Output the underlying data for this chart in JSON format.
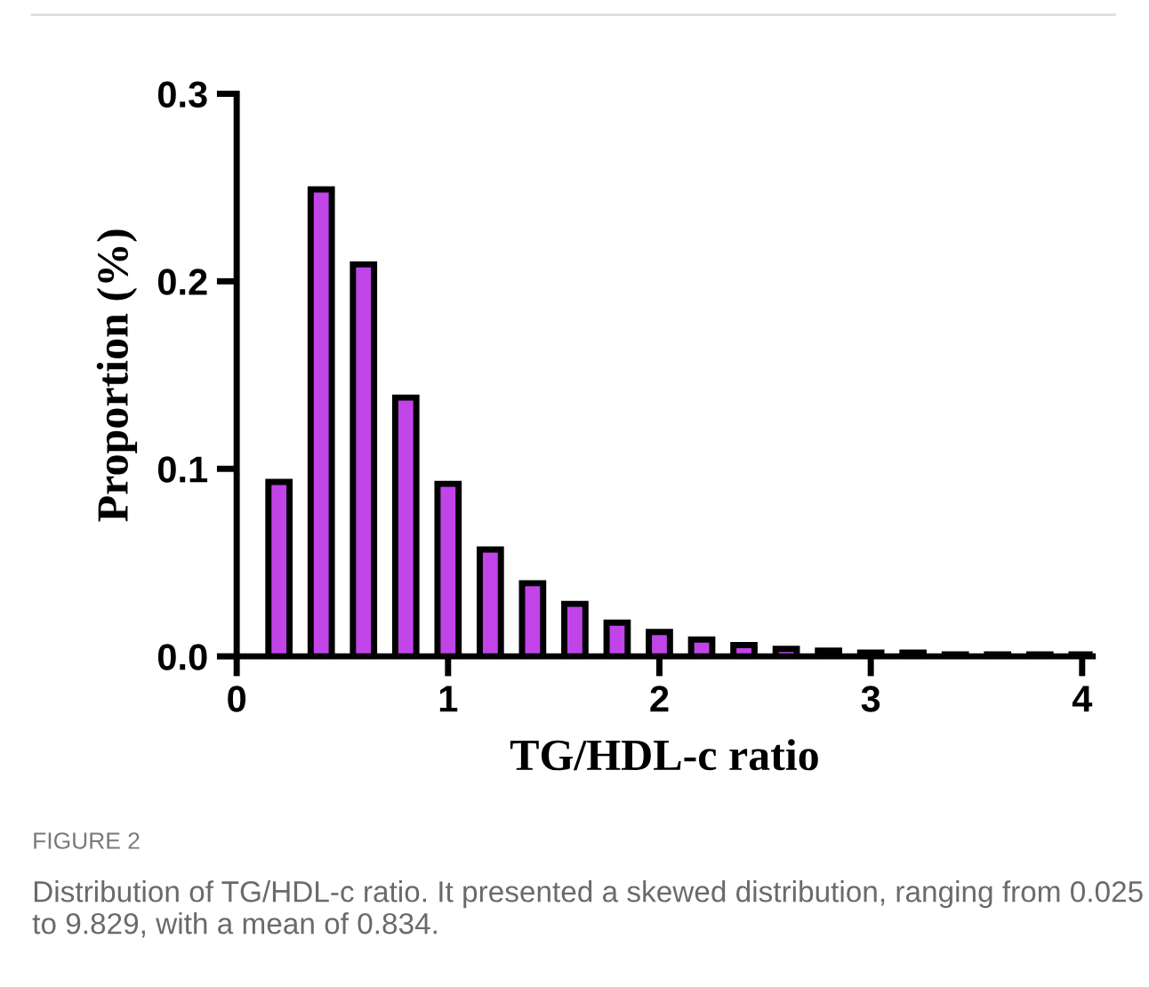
{
  "chart_data": {
    "type": "bar",
    "xlabel": "TG/HDL-c ratio",
    "ylabel": "Proportion (%)",
    "x": [
      0.2,
      0.4,
      0.6,
      0.8,
      1.0,
      1.2,
      1.4,
      1.6,
      1.8,
      2.0,
      2.2,
      2.4,
      2.6,
      2.8,
      3.0,
      3.2,
      3.4,
      3.6,
      3.8,
      4.0
    ],
    "values": [
      0.093,
      0.249,
      0.209,
      0.138,
      0.092,
      0.057,
      0.039,
      0.028,
      0.018,
      0.013,
      0.009,
      0.006,
      0.004,
      0.003,
      0.002,
      0.002,
      0.001,
      0.001,
      0.001,
      0.001
    ],
    "color": "#c144e8",
    "xlim": [
      0,
      4.05
    ],
    "xticks": [
      0,
      1,
      2,
      3,
      4
    ],
    "ylim": [
      0,
      0.3
    ],
    "yticks": [
      {
        "value": 0,
        "label": "0.0"
      },
      0.1,
      0.2,
      0.3
    ],
    "grid": false,
    "legend": false,
    "annotations": [
      "FIGURE 2",
      "Distribution of TG/HDL-c ratio. It presented a skewed distribution, ranging from 0.025 to 9.829, with a mean of 0.834."
    ]
  }
}
